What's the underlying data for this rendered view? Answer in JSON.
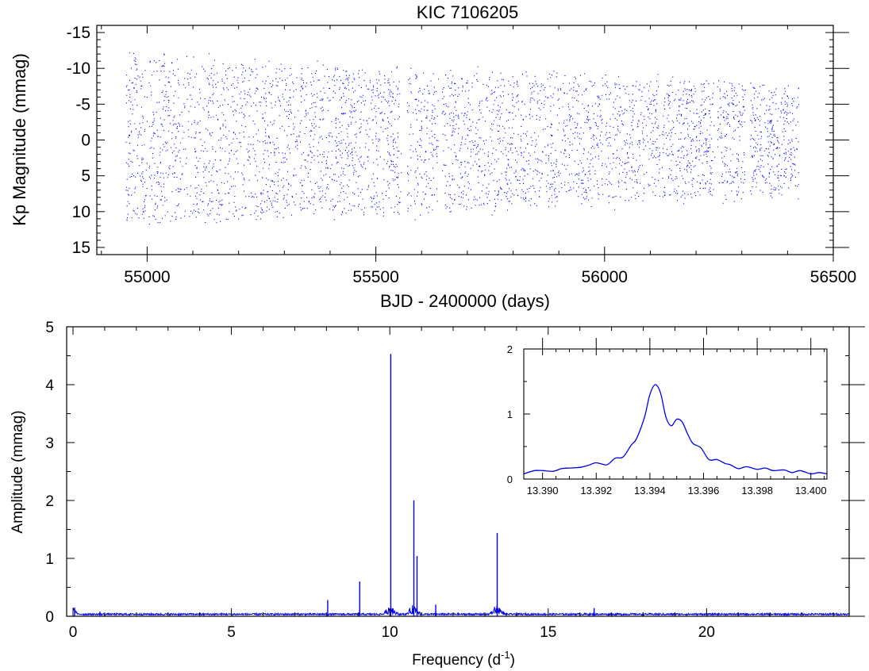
{
  "chart_data": [
    {
      "id": "light-curve",
      "type": "scatter",
      "title": "KIC 7106205",
      "xlabel": "BJD - 2400000 (days)",
      "ylabel": "Kp Magnitude (mmag)",
      "xlim": [
        54890,
        56500
      ],
      "ylim": [
        16,
        -16
      ],
      "y_inverted": true,
      "x_ticks": [
        55000,
        55500,
        56000,
        56500
      ],
      "y_ticks": [
        -15,
        -10,
        -5,
        0,
        5,
        10,
        15
      ],
      "y_tick_labels": [
        "-15",
        "-10",
        "-5",
        "0",
        "5",
        "10",
        "15"
      ],
      "grid": false,
      "color": "#0000ee",
      "data_start": 54953,
      "data_end": 56424,
      "scatter_half_width_start": 12.5,
      "scatter_half_width_end": 8.0,
      "gaps": [
        [
          54999,
          55003
        ],
        [
          55180,
          55182
        ],
        [
          55228,
          55230
        ],
        [
          55555,
          55568
        ],
        [
          55636,
          55644
        ],
        [
          55900,
          55902
        ],
        [
          55996,
          56000
        ],
        [
          56120,
          56125
        ],
        [
          56240,
          56246
        ],
        [
          56308,
          56318
        ]
      ]
    },
    {
      "id": "amplitude-spectrum",
      "type": "line",
      "xlabel": "Frequency (d",
      "xlabel_superscript": "-1",
      "xlabel_suffix": ")",
      "ylabel": "Amplitude (mmag)",
      "xlim": [
        -0.2,
        24.5
      ],
      "ylim": [
        0,
        5
      ],
      "x_ticks": [
        0,
        5,
        10,
        15,
        20
      ],
      "y_ticks": [
        0,
        1,
        2,
        3,
        4,
        5
      ],
      "grid": false,
      "color": "#0000ee",
      "peaks": [
        {
          "f": 0.05,
          "a": 0.15
        },
        {
          "f": 0.85,
          "a": 0.08
        },
        {
          "f": 8.04,
          "a": 0.28
        },
        {
          "f": 9.05,
          "a": 0.6
        },
        {
          "f": 10.03,
          "a": 4.53
        },
        {
          "f": 10.76,
          "a": 2.0
        },
        {
          "f": 10.86,
          "a": 1.04
        },
        {
          "f": 11.45,
          "a": 0.2
        },
        {
          "f": 13.39,
          "a": 1.44
        },
        {
          "f": 16.45,
          "a": 0.14
        }
      ]
    },
    {
      "id": "inset-spectrum",
      "type": "line",
      "xlim": [
        13.3893,
        13.4006
      ],
      "ylim": [
        0,
        2
      ],
      "x_ticks": [
        13.39,
        13.392,
        13.394,
        13.396,
        13.398,
        13.4
      ],
      "x_tick_labels": [
        "13.390",
        "13.392",
        "13.394",
        "13.396",
        "13.398",
        "13.400"
      ],
      "y_ticks": [
        0,
        1,
        2
      ],
      "color": "#0000ee",
      "x": [
        13.3893,
        13.3897,
        13.39,
        13.3904,
        13.3907,
        13.391,
        13.3914,
        13.3917,
        13.392,
        13.3924,
        13.3927,
        13.393,
        13.3933,
        13.3935,
        13.3938,
        13.394,
        13.3942,
        13.3944,
        13.3946,
        13.3948,
        13.395,
        13.3952,
        13.3954,
        13.3956,
        13.3959,
        13.3962,
        13.3965,
        13.3968,
        13.397,
        13.3973,
        13.3976,
        13.398,
        13.3983,
        13.3986,
        13.399,
        13.3993,
        13.3996,
        13.4,
        13.4003,
        13.4006
      ],
      "y": [
        0.08,
        0.13,
        0.13,
        0.12,
        0.16,
        0.17,
        0.18,
        0.21,
        0.25,
        0.22,
        0.32,
        0.34,
        0.52,
        0.62,
        0.95,
        1.3,
        1.45,
        1.32,
        0.95,
        0.82,
        0.92,
        0.88,
        0.7,
        0.55,
        0.48,
        0.3,
        0.3,
        0.24,
        0.22,
        0.16,
        0.19,
        0.15,
        0.17,
        0.13,
        0.14,
        0.1,
        0.13,
        0.08,
        0.1,
        0.08
      ]
    }
  ]
}
